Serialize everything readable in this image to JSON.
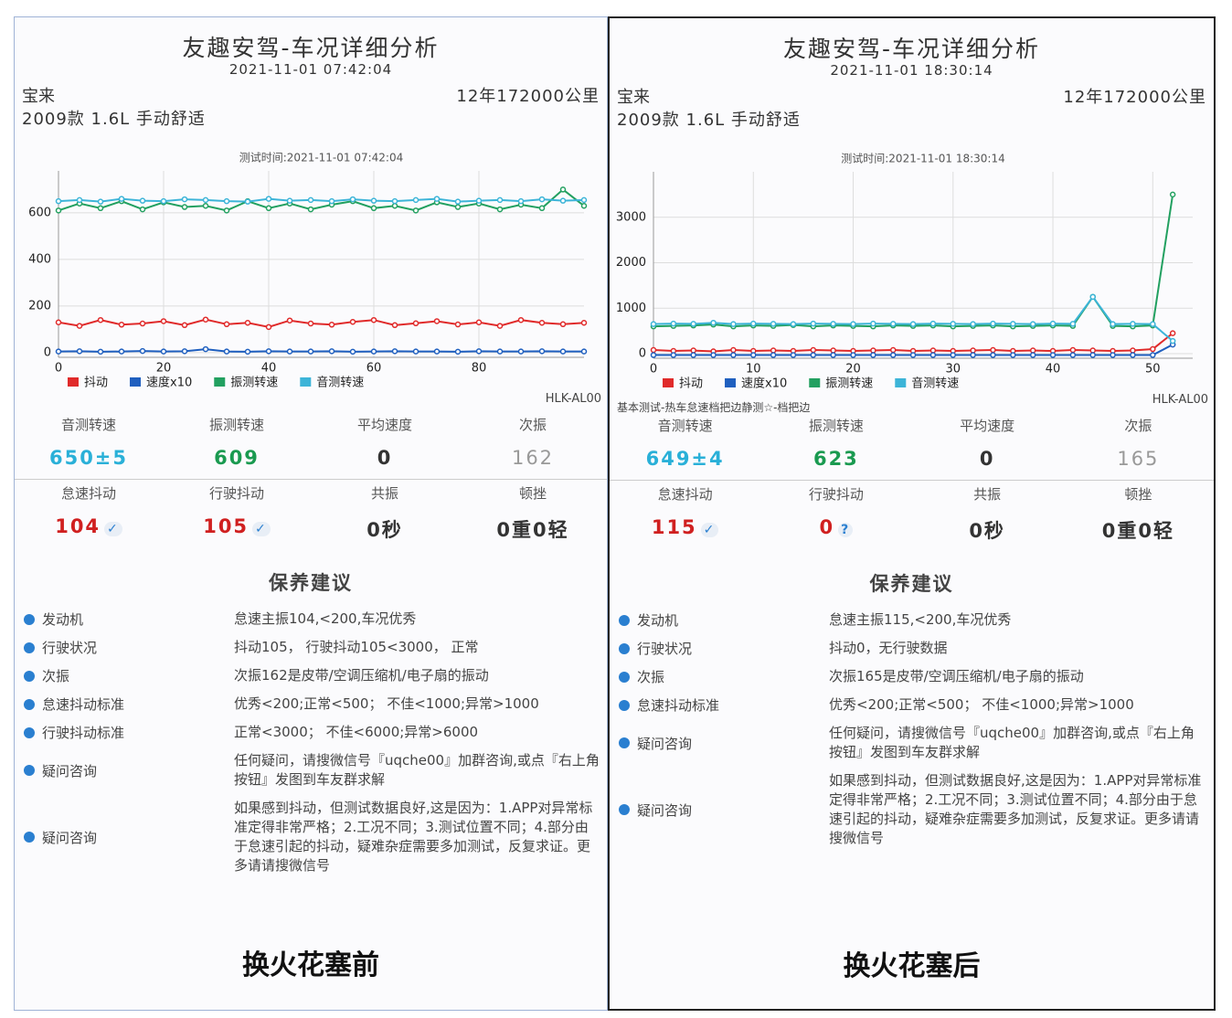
{
  "panels": [
    {
      "title": "友趣安驾-车况详细分析",
      "datetime": "2021-11-01 07:42:04",
      "car": "宝来",
      "mileage": "12年172000公里",
      "model": "2009款 1.6L 手动舒适",
      "chart_data": {
        "type": "line",
        "subtitle": "测试时间:2021-11-01 07:42:04",
        "x": [
          0,
          4,
          8,
          12,
          16,
          20,
          24,
          28,
          32,
          36,
          40,
          44,
          48,
          52,
          56,
          60,
          64,
          68,
          72,
          76,
          80,
          84,
          88,
          92,
          96,
          100
        ],
        "xlim": [
          0,
          100
        ],
        "xticks": [
          0,
          20,
          40,
          60,
          80
        ],
        "ylim": [
          -20,
          780
        ],
        "yticks": [
          0,
          200,
          400,
          600
        ],
        "grid": true,
        "series": [
          {
            "name": "抖动",
            "color": "#e02a2a",
            "values": [
              130,
              115,
              140,
              120,
              125,
              135,
              118,
              142,
              122,
              128,
              110,
              138,
              125,
              120,
              132,
              140,
              118,
              126,
              135,
              121,
              130,
              115,
              140,
              128,
              122,
              128
            ]
          },
          {
            "name": "速度x10",
            "color": "#1f5fbf",
            "values": [
              5,
              6,
              4,
              5,
              7,
              5,
              6,
              15,
              5,
              4,
              6,
              5,
              5,
              6,
              4,
              5,
              6,
              5,
              5,
              4,
              6,
              5,
              5,
              6,
              5,
              5
            ]
          },
          {
            "name": "振测转速",
            "color": "#22a060",
            "values": [
              610,
              640,
              620,
              650,
              615,
              645,
              625,
              630,
              610,
              650,
              620,
              640,
              615,
              635,
              650,
              620,
              630,
              610,
              645,
              625,
              640,
              615,
              635,
              620,
              700,
              630
            ]
          },
          {
            "name": "音测转速",
            "color": "#3cb4d8",
            "values": [
              650,
              655,
              648,
              660,
              652,
              650,
              658,
              655,
              650,
              648,
              660,
              652,
              655,
              650,
              658,
              652,
              650,
              655,
              660,
              648,
              652,
              655,
              650,
              658,
              652,
              655
            ]
          }
        ]
      },
      "device": "HLK-AL00",
      "metrics1": [
        {
          "label": "音测转速",
          "value": "650±5"
        },
        {
          "label": "振测转速",
          "value": "609"
        },
        {
          "label": "平均速度",
          "value": "0"
        },
        {
          "label": "次振",
          "value": "162"
        }
      ],
      "metrics2": [
        {
          "label": "怠速抖动",
          "value": "104",
          "mark": "✓"
        },
        {
          "label": "行驶抖动",
          "value": "105",
          "mark": "✓"
        },
        {
          "label": "共振",
          "value": "0秒"
        },
        {
          "label": "顿挫",
          "value": "0重0轻"
        }
      ],
      "advice_title": "保养建议",
      "advice": [
        [
          "发动机",
          "怠速主振104,<200,车况优秀"
        ],
        [
          "行驶状况",
          "抖动105， 行驶抖动105<3000， 正常"
        ],
        [
          "次振",
          "次振162是皮带/空调压缩机/电子扇的振动"
        ],
        [
          "怠速抖动标准",
          "优秀<200;正常<500； 不佳<1000;异常>1000"
        ],
        [
          "行驶抖动标准",
          "正常<3000； 不佳<6000;异常>6000"
        ],
        [
          "疑问咨询",
          "任何疑问，请搜微信号『uqche00』加群咨询,或点『右上角按钮』发图到车友群求解"
        ],
        [
          "疑问咨询",
          "如果感到抖动，但测试数据良好,这是因为：1.APP对异常标准定得非常严格；2.工况不同；3.测试位置不同；4.部分由于怠速引起的抖动，疑难杂症需要多加测试，反复求证。更多请请搜微信号"
        ]
      ],
      "caption": "换火花塞前"
    },
    {
      "title": "友趣安驾-车况详细分析",
      "datetime": "2021-11-01 18:30:14",
      "car": "宝来",
      "mileage": "12年172000公里",
      "model": "2009款 1.6L 手动舒适",
      "chart_data": {
        "type": "line",
        "subtitle": "测试时间:2021-11-01 18:30:14",
        "x": [
          0,
          2,
          4,
          6,
          8,
          10,
          12,
          14,
          16,
          18,
          20,
          22,
          24,
          26,
          28,
          30,
          32,
          34,
          36,
          38,
          40,
          42,
          44,
          46,
          48,
          50,
          52
        ],
        "xlim": [
          0,
          54
        ],
        "xticks": [
          0,
          10,
          20,
          30,
          40,
          50
        ],
        "ylim": [
          -100,
          4000
        ],
        "yticks": [
          0,
          1000,
          2000,
          3000
        ],
        "grid": true,
        "series": [
          {
            "name": "抖动",
            "color": "#e02a2a",
            "values": [
              80,
              60,
              70,
              50,
              80,
              60,
              70,
              60,
              80,
              70,
              60,
              70,
              80,
              60,
              70,
              60,
              70,
              80,
              60,
              70,
              60,
              80,
              70,
              60,
              70,
              100,
              450
            ]
          },
          {
            "name": "速度x10",
            "color": "#1f5fbf",
            "values": [
              -30,
              -30,
              -30,
              -30,
              -30,
              -30,
              -30,
              -30,
              -30,
              -30,
              -30,
              -30,
              -30,
              -30,
              -30,
              -30,
              -30,
              -30,
              -30,
              -30,
              -30,
              -30,
              -30,
              -30,
              -30,
              -30,
              200
            ]
          },
          {
            "name": "振测转速",
            "color": "#22a060",
            "values": [
              600,
              610,
              620,
              640,
              600,
              620,
              610,
              630,
              600,
              620,
              610,
              600,
              620,
              610,
              620,
              600,
              610,
              620,
              600,
              610,
              620,
              610,
              1250,
              610,
              600,
              620,
              3500
            ]
          },
          {
            "name": "音测转速",
            "color": "#3cb4d8",
            "values": [
              650,
              660,
              655,
              680,
              650,
              660,
              655,
              650,
              660,
              655,
              650,
              660,
              655,
              650,
              660,
              655,
              650,
              660,
              655,
              650,
              660,
              655,
              1250,
              650,
              655,
              650,
              280
            ]
          }
        ]
      },
      "note": "基本测试-热车怠速档把边静测☆-档把边",
      "device": "HLK-AL00",
      "metrics1": [
        {
          "label": "音测转速",
          "value": "649±4"
        },
        {
          "label": "振测转速",
          "value": "623"
        },
        {
          "label": "平均速度",
          "value": "0"
        },
        {
          "label": "次振",
          "value": "165"
        }
      ],
      "metrics2": [
        {
          "label": "怠速抖动",
          "value": "115",
          "mark": "✓"
        },
        {
          "label": "行驶抖动",
          "value": "0",
          "mark": "?"
        },
        {
          "label": "共振",
          "value": "0秒"
        },
        {
          "label": "顿挫",
          "value": "0重0轻"
        }
      ],
      "advice_title": "保养建议",
      "advice": [
        [
          "发动机",
          "怠速主振115,<200,车况优秀"
        ],
        [
          "行驶状况",
          "抖动0，无行驶数据"
        ],
        [
          "次振",
          "次振165是皮带/空调压缩机/电子扇的振动"
        ],
        [
          "怠速抖动标准",
          "优秀<200;正常<500； 不佳<1000;异常>1000"
        ],
        [
          "疑问咨询",
          "任何疑问，请搜微信号『uqche00』加群咨询,或点『右上角按钮』发图到车友群求解"
        ],
        [
          "疑问咨询",
          "如果感到抖动，但测试数据良好,这是因为：1.APP对异常标准定得非常严格；2.工况不同；3.测试位置不同；4.部分由于怠速引起的抖动，疑难杂症需要多加测试，反复求证。更多请请搜微信号"
        ]
      ],
      "caption": "换火花塞后"
    }
  ]
}
